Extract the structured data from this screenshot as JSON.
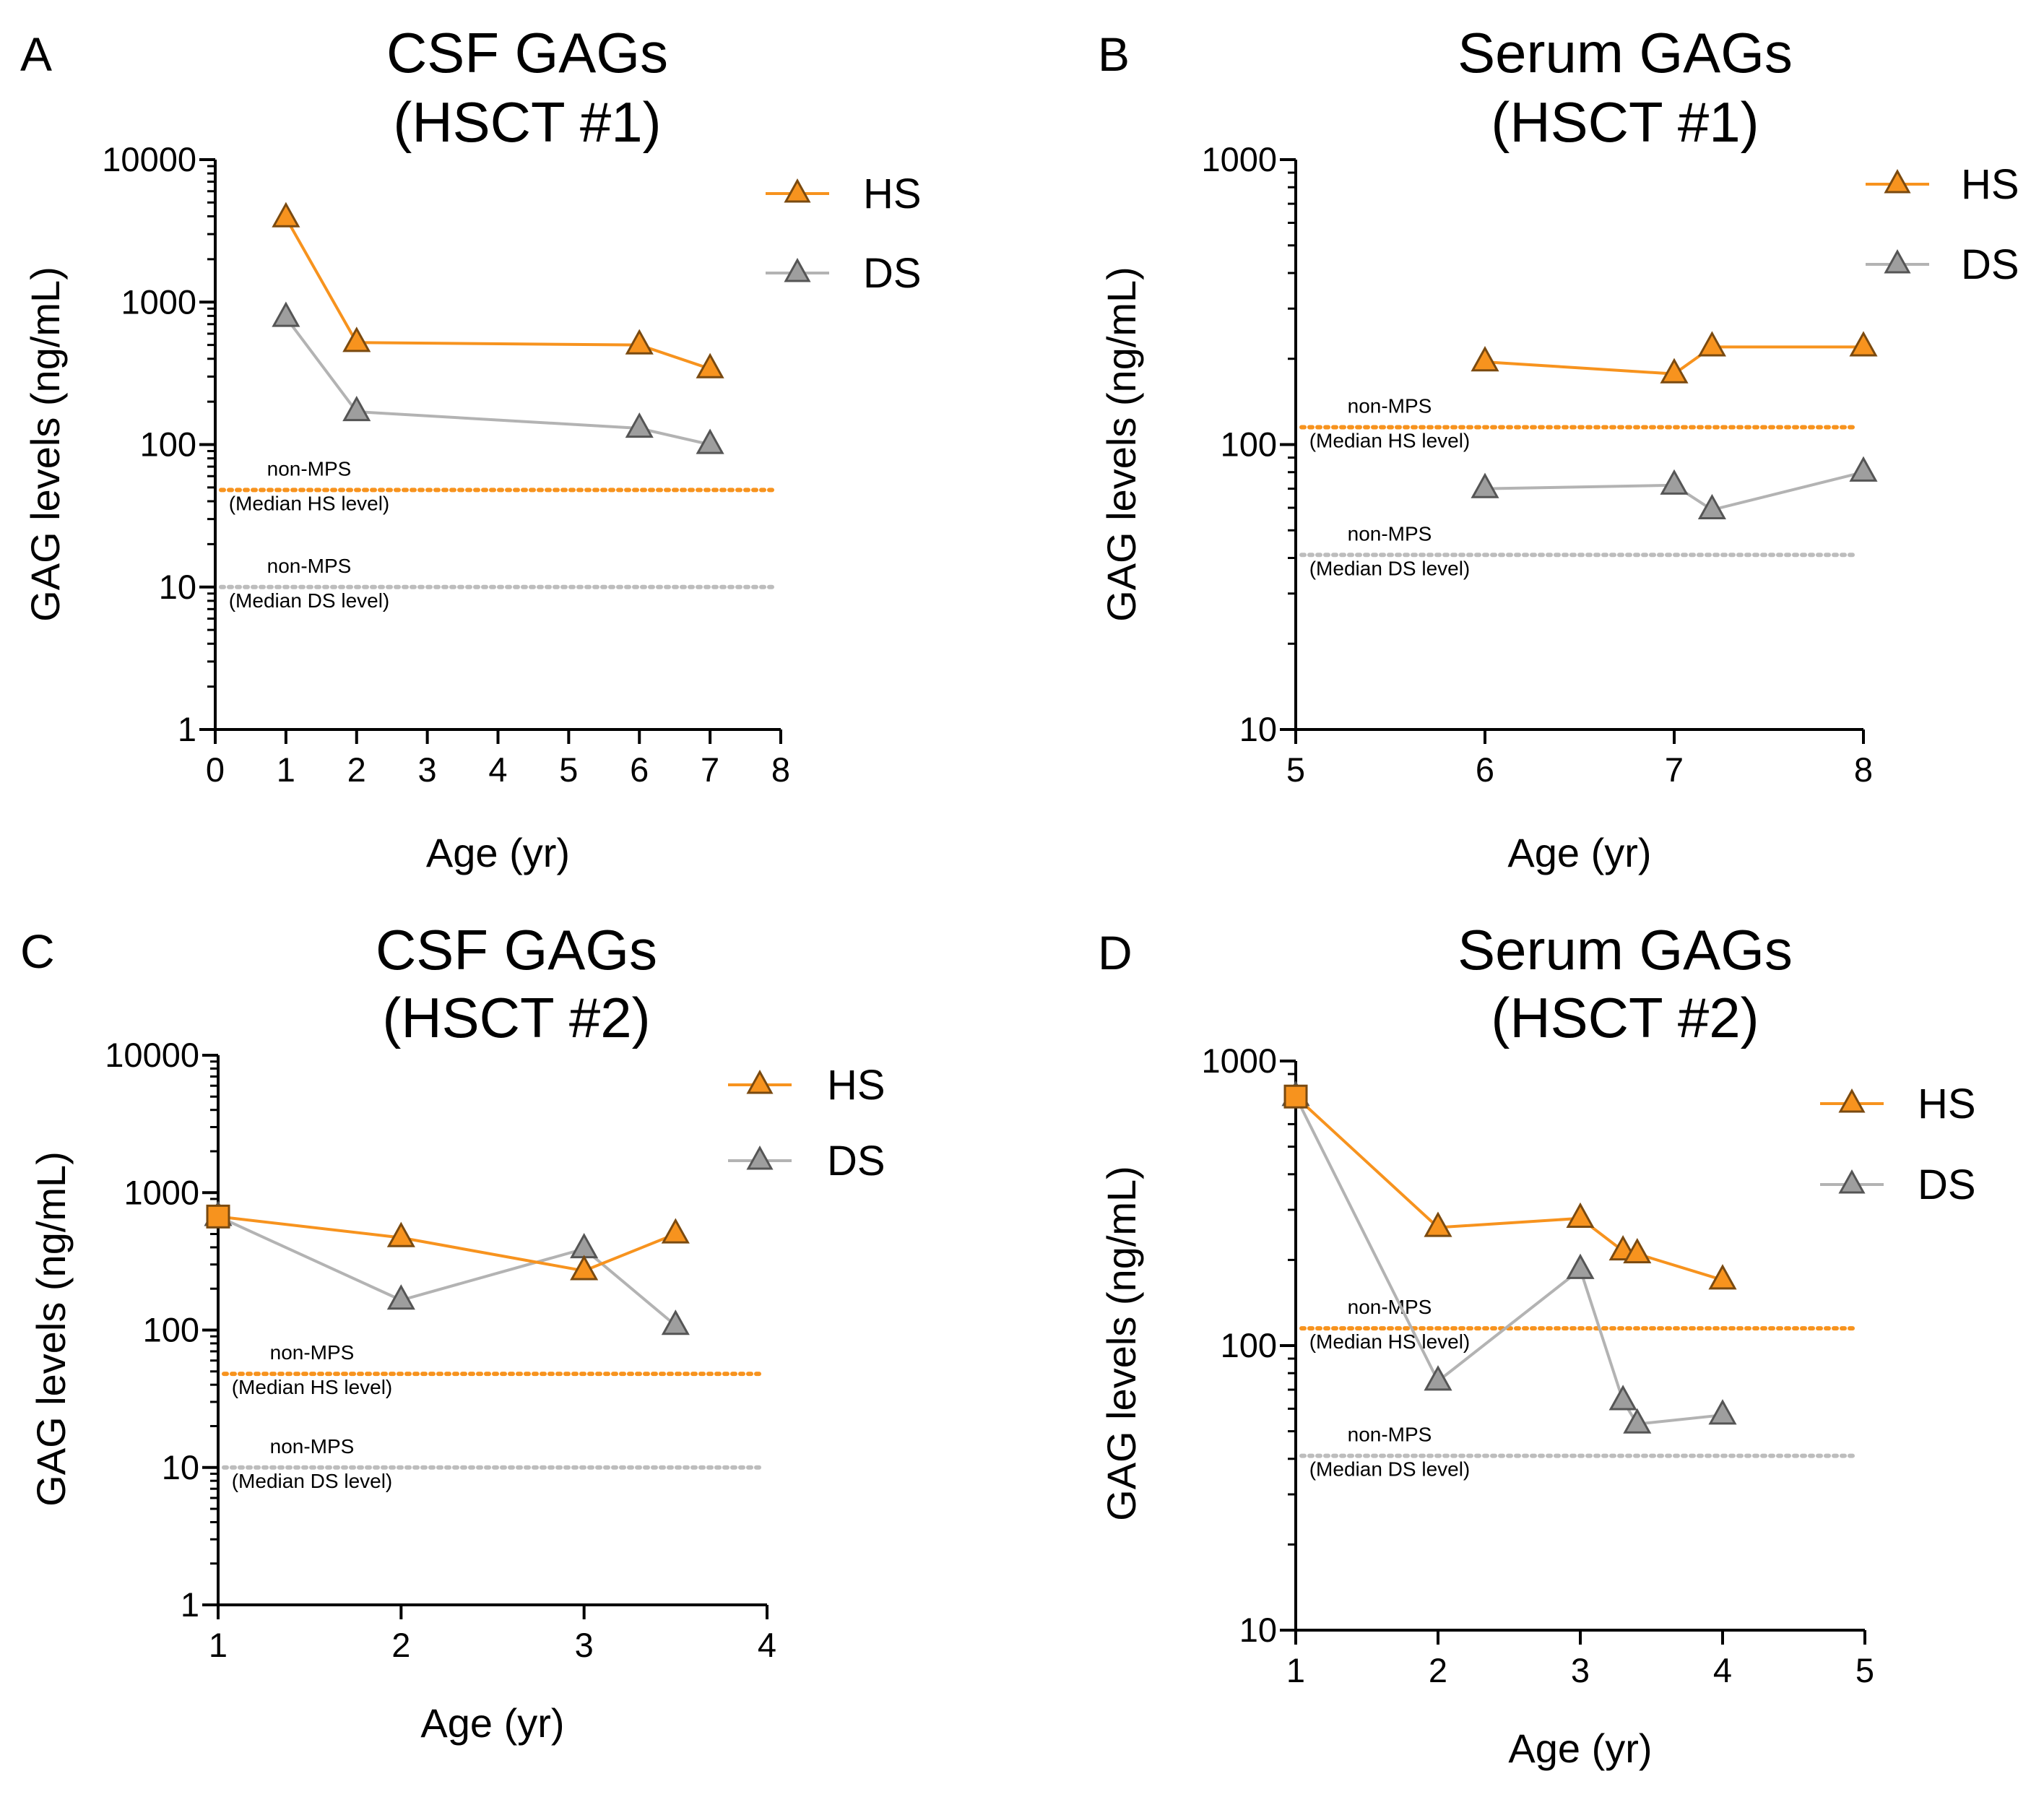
{
  "colors": {
    "HS": "#f7931e",
    "HS_marker_stroke": "#7a4a10",
    "DS_line": "#b3b3b3",
    "DS_marker": "#9e9e9e",
    "DS_marker_stroke": "#555555",
    "HS_ref_line": "#f7931e",
    "DS_ref_line": "#bdbdbd"
  },
  "chart_data": [
    {
      "panel": "A",
      "type": "line",
      "title": [
        "CSF GAGs",
        "(HSCT #1)"
      ],
      "xlabel": "Age (yr)",
      "ylabel": "GAG levels (ng/mL)",
      "yscale": "log",
      "xlim": [
        0,
        8
      ],
      "ylim": [
        1,
        10000
      ],
      "xticks": [
        0,
        1,
        2,
        3,
        4,
        5,
        6,
        7,
        8
      ],
      "yticks": [
        1,
        10,
        100,
        1000,
        10000
      ],
      "ytick_labels": [
        "1",
        "10",
        "100",
        "1000",
        "10000"
      ],
      "series": [
        {
          "name": "HS",
          "marker": "triangle",
          "x": [
            1,
            2,
            6,
            7
          ],
          "values": [
            3900,
            520,
            500,
            340
          ]
        },
        {
          "name": "DS",
          "marker": "triangle",
          "x": [
            1,
            2,
            6,
            7
          ],
          "values": [
            780,
            170,
            130,
            100
          ]
        }
      ],
      "reference_lines": [
        {
          "series": "HS",
          "value": 48,
          "labels": [
            "non-MPS",
            "(Median HS level)"
          ]
        },
        {
          "series": "DS",
          "value": 10,
          "labels": [
            "non-MPS",
            "(Median DS level)"
          ]
        }
      ],
      "legend": [
        "HS",
        "DS"
      ],
      "legend_position": "top-right"
    },
    {
      "panel": "B",
      "type": "line",
      "title": [
        "Serum GAGs",
        "(HSCT #1)"
      ],
      "xlabel": "Age (yr)",
      "ylabel": "GAG levels (ng/mL)",
      "yscale": "log",
      "xlim": [
        5,
        8
      ],
      "ylim": [
        10,
        1000
      ],
      "xticks": [
        5,
        6,
        7,
        8
      ],
      "yticks": [
        10,
        100,
        1000
      ],
      "ytick_labels": [
        "10",
        "100",
        "1000"
      ],
      "series": [
        {
          "name": "HS",
          "marker": "triangle",
          "x": [
            6,
            7,
            7.2,
            8
          ],
          "values": [
            195,
            177,
            220,
            220
          ]
        },
        {
          "name": "DS",
          "marker": "triangle",
          "x": [
            6,
            7,
            7.2,
            8
          ],
          "values": [
            70,
            72,
            59,
            80
          ]
        }
      ],
      "reference_lines": [
        {
          "series": "HS",
          "value": 115,
          "labels": [
            "non-MPS",
            "(Median HS level)"
          ]
        },
        {
          "series": "DS",
          "value": 41,
          "labels": [
            "non-MPS",
            "(Median DS level)"
          ]
        }
      ],
      "legend": [
        "HS",
        "DS"
      ],
      "legend_position": "top-right"
    },
    {
      "panel": "C",
      "type": "line",
      "title": [
        "CSF GAGs",
        "(HSCT #2)"
      ],
      "xlabel": "Age (yr)",
      "ylabel": "GAG levels (ng/mL)",
      "yscale": "log",
      "xlim": [
        1,
        4
      ],
      "ylim": [
        1,
        10000
      ],
      "xticks": [
        1,
        2,
        3,
        4
      ],
      "yticks": [
        1,
        10,
        100,
        1000,
        10000
      ],
      "ytick_labels": [
        "1",
        "10",
        "100",
        "1000",
        "10000"
      ],
      "series": [
        {
          "name": "HS",
          "marker": "triangle",
          "first_marker": "square",
          "x": [
            1,
            2,
            3,
            3.5
          ],
          "values": [
            670,
            470,
            270,
            500
          ]
        },
        {
          "name": "DS",
          "marker": "triangle",
          "x": [
            1,
            2,
            3,
            3.5
          ],
          "values": [
            670,
            165,
            390,
            108
          ]
        }
      ],
      "reference_lines": [
        {
          "series": "HS",
          "value": 48,
          "labels": [
            "non-MPS",
            "(Median HS level)"
          ]
        },
        {
          "series": "DS",
          "value": 10,
          "labels": [
            "non-MPS",
            "(Median DS level)"
          ]
        }
      ],
      "legend": [
        "HS",
        "DS"
      ],
      "legend_position": "top-right"
    },
    {
      "panel": "D",
      "type": "line",
      "title": [
        "Serum GAGs",
        "(HSCT #2)"
      ],
      "xlabel": "Age (yr)",
      "ylabel": "GAG levels (ng/mL)",
      "yscale": "log",
      "xlim": [
        1,
        5
      ],
      "ylim": [
        10,
        1000
      ],
      "xticks": [
        1,
        2,
        3,
        4,
        5
      ],
      "yticks": [
        10,
        100,
        1000
      ],
      "ytick_labels": [
        "10",
        "100",
        "1000"
      ],
      "series": [
        {
          "name": "HS",
          "marker": "triangle",
          "first_marker": "square",
          "x": [
            1,
            2,
            3,
            3.3,
            3.4,
            4
          ],
          "values": [
            750,
            260,
            280,
            215,
            210,
            170
          ]
        },
        {
          "name": "DS",
          "marker": "triangle",
          "x": [
            1,
            2,
            3,
            3.3,
            3.4,
            4
          ],
          "values": [
            750,
            75,
            185,
            64,
            53,
            57
          ]
        }
      ],
      "reference_lines": [
        {
          "series": "HS",
          "value": 115,
          "labels": [
            "non-MPS",
            "(Median HS level)"
          ]
        },
        {
          "series": "DS",
          "value": 41,
          "labels": [
            "non-MPS",
            "(Median DS level)"
          ]
        }
      ],
      "legend": [
        "HS",
        "DS"
      ],
      "legend_position": "top-right"
    }
  ]
}
